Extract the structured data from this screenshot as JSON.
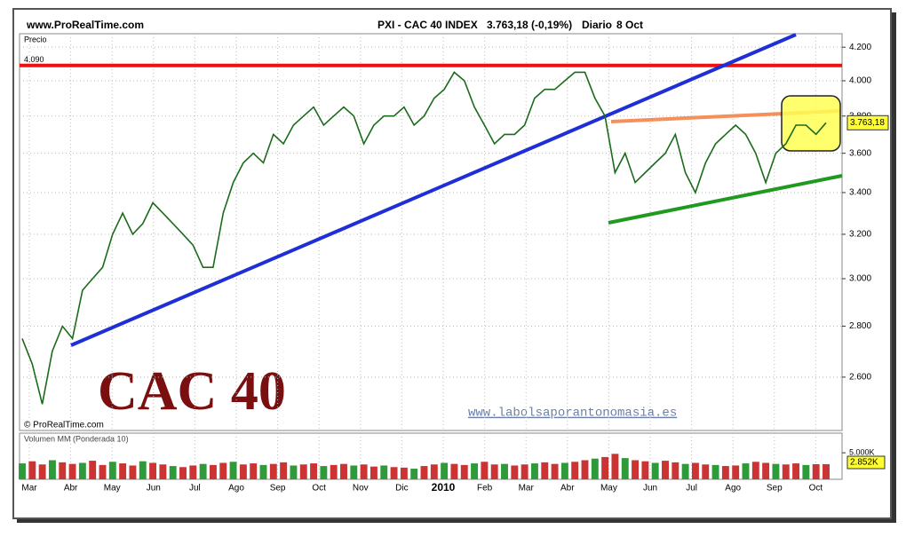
{
  "header": {
    "site": "www.ProRealTime.com",
    "instrument": "PXI - CAC 40 INDEX",
    "quote": "3.763,18 (-0,19%)",
    "period": "Diario",
    "date": "8 Oct"
  },
  "chart_data": {
    "type": "line",
    "price_label": "Precio",
    "color": "#1a6b1a",
    "log_scale": true,
    "grid": true,
    "ylim": [
      2406,
      4283
    ],
    "yticks": [
      {
        "value": 2600,
        "label": "2.600"
      },
      {
        "value": 2800,
        "label": "2.800"
      },
      {
        "value": 3000,
        "label": "3.000"
      },
      {
        "value": 3200,
        "label": "3.200"
      },
      {
        "value": 3400,
        "label": "3.400"
      },
      {
        "value": 3600,
        "label": "3.600"
      },
      {
        "value": 3800,
        "label": "3.800"
      },
      {
        "value": 4000,
        "label": "4.000"
      },
      {
        "value": 4200,
        "label": "4.200"
      }
    ],
    "resistance": {
      "value": 4090,
      "label": "4.090",
      "color": "#ee1111"
    },
    "last_price": {
      "value": 3763.18,
      "label": "3.763,18"
    },
    "x_labels": [
      "Mar",
      "Abr",
      "May",
      "Jun",
      "Jul",
      "Ago",
      "Sep",
      "Oct",
      "Nov",
      "Dic",
      "2010",
      "Feb",
      "Mar",
      "Abr",
      "May",
      "Jun",
      "Jul",
      "Ago",
      "Sep",
      "Oct"
    ],
    "values": [
      2750,
      2650,
      2500,
      2700,
      2800,
      2750,
      2950,
      3000,
      3050,
      3200,
      3300,
      3200,
      3250,
      3350,
      3300,
      3250,
      3200,
      3150,
      3050,
      3050,
      3300,
      3450,
      3550,
      3600,
      3550,
      3700,
      3650,
      3750,
      3800,
      3850,
      3750,
      3800,
      3850,
      3800,
      3650,
      3750,
      3800,
      3800,
      3850,
      3750,
      3800,
      3900,
      3950,
      4050,
      4000,
      3850,
      3750,
      3650,
      3700,
      3700,
      3750,
      3900,
      3950,
      3950,
      4000,
      4050,
      4050,
      3900,
      3800,
      3500,
      3600,
      3450,
      3500,
      3550,
      3600,
      3700,
      3500,
      3400,
      3550,
      3650,
      3700,
      3750,
      3700,
      3600,
      3450,
      3600,
      3650,
      3750,
      3750,
      3700,
      3763
    ],
    "volume": {
      "label": "Volumen MM (Ponderada 10)",
      "color": "#cc3333",
      "ylim": [
        0,
        8700
      ],
      "yticks": [
        {
          "value": 5000,
          "label": "5.000K"
        }
      ],
      "last_label": "2.852K",
      "values": [
        3000,
        3400,
        2800,
        3600,
        3200,
        2900,
        3100,
        3500,
        2700,
        3300,
        3000,
        2600,
        3400,
        3100,
        2800,
        2500,
        2300,
        2600,
        2900,
        2700,
        3100,
        3300,
        2800,
        3000,
        2700,
        2900,
        3200,
        2600,
        2800,
        3000,
        2500,
        2700,
        2900,
        2600,
        2800,
        2400,
        2600,
        2300,
        2200,
        2000,
        2500,
        2800,
        3100,
        2900,
        2700,
        3000,
        3300,
        2800,
        2900,
        2600,
        2800,
        3000,
        3200,
        2900,
        3100,
        3300,
        3600,
        3900,
        4200,
        4800,
        4000,
        3600,
        3400,
        3100,
        3500,
        3200,
        2900,
        3100,
        2800,
        2700,
        2500,
        2600,
        3000,
        3300,
        3100,
        2900,
        2800,
        3000,
        2700,
        2852,
        2852
      ]
    }
  },
  "watermark": "CAC 40",
  "website": "www.labolsaporantonomasia.es",
  "copyright": "© ProRealTime.com"
}
